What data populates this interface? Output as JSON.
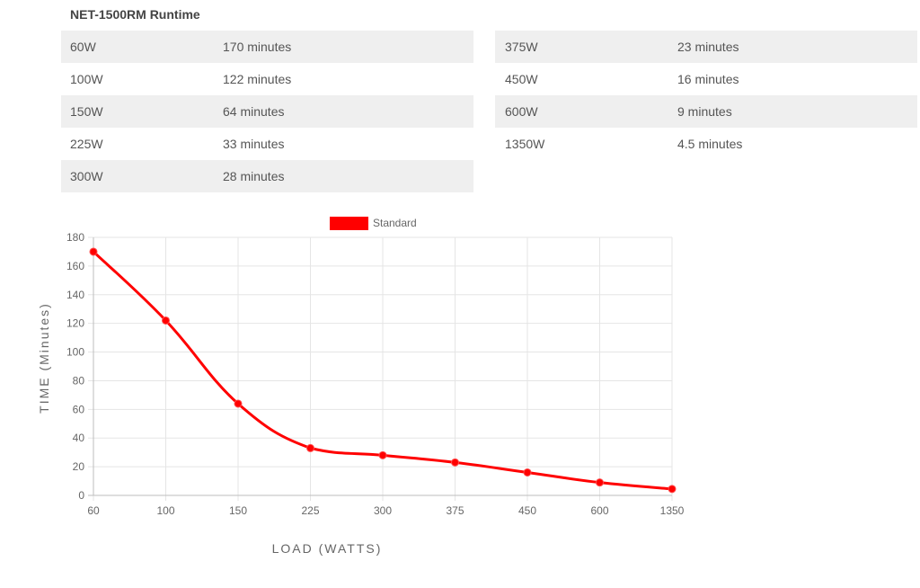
{
  "table": {
    "title": "NET-1500RM Runtime",
    "left": [
      {
        "load": "60W",
        "time": "170 minutes"
      },
      {
        "load": "100W",
        "time": "122 minutes"
      },
      {
        "load": "150W",
        "time": "64 minutes"
      },
      {
        "load": "225W",
        "time": "33 minutes"
      },
      {
        "load": "300W",
        "time": "28 minutes"
      }
    ],
    "right": [
      {
        "load": "375W",
        "time": "23 minutes"
      },
      {
        "load": "450W",
        "time": "16 minutes"
      },
      {
        "load": "600W",
        "time": "9 minutes"
      },
      {
        "load": "1350W",
        "time": "4.5 minutes"
      }
    ]
  },
  "chart_data": {
    "type": "line",
    "categories": [
      "60",
      "100",
      "150",
      "225",
      "300",
      "375",
      "450",
      "600",
      "1350"
    ],
    "series": [
      {
        "name": "Standard",
        "values": [
          170,
          122,
          64,
          33,
          28,
          23,
          16,
          9,
          4.5
        ],
        "color": "#ff0000"
      }
    ],
    "xlabel": "LOAD (WATTS)",
    "ylabel": "TIME (Minutes)",
    "ylim": [
      0,
      180
    ],
    "yticks": [
      0,
      20,
      40,
      60,
      80,
      100,
      120,
      140,
      160,
      180
    ],
    "grid": true,
    "legend": "top"
  }
}
